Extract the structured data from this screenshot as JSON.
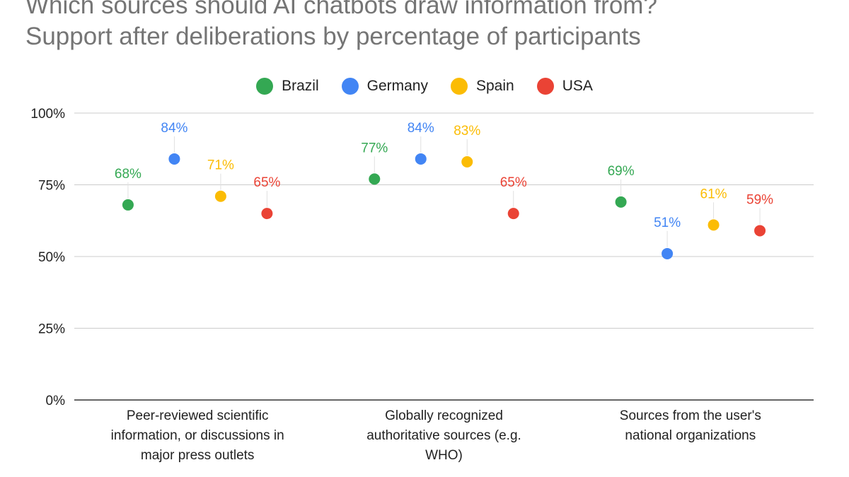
{
  "chart_data": {
    "type": "scatter",
    "title": "Which sources should AI chatbots draw information from?",
    "subtitle": "Support after deliberations by percentage of participants",
    "categories": [
      [
        "Peer-reviewed scientific",
        "information, or discussions in",
        "major press outlets"
      ],
      [
        "Globally recognized",
        "authoritative sources (e.g.",
        "WHO)"
      ],
      [
        "Sources from the user's",
        "national organizations"
      ]
    ],
    "series": [
      {
        "name": "Brazil",
        "color": "#34a853",
        "values": [
          68,
          77,
          69
        ]
      },
      {
        "name": "Germany",
        "color": "#4285f4",
        "values": [
          84,
          84,
          51
        ]
      },
      {
        "name": "Spain",
        "color": "#fbbc04",
        "values": [
          71,
          83,
          61
        ]
      },
      {
        "name": "USA",
        "color": "#ea4335",
        "values": [
          65,
          65,
          59
        ]
      }
    ],
    "y_ticks": [
      "0%",
      "25%",
      "50%",
      "75%",
      "100%"
    ],
    "ylim": [
      0,
      100
    ],
    "grid": true,
    "legend_position": "top-center",
    "value_suffix": "%"
  }
}
